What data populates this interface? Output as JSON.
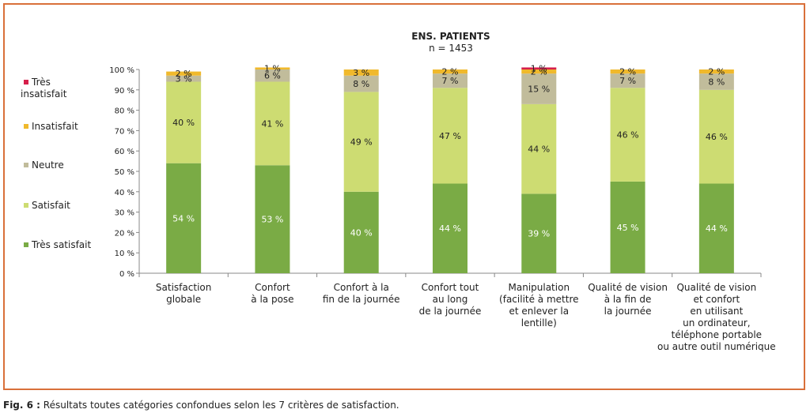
{
  "chart_data": {
    "type": "bar",
    "stacked": true,
    "title": "ENS. PATIENTS",
    "subtitle": "n = 1453",
    "ylim": [
      0,
      100
    ],
    "yticks": [
      "0 %",
      "10 %",
      "20 %",
      "30 %",
      "40 %",
      "50 %",
      "60 %",
      "70 %",
      "80 %",
      "90 %",
      "100 %"
    ],
    "categories": [
      [
        "Satisfaction",
        "globale"
      ],
      [
        "Confort",
        "à la pose"
      ],
      [
        "Confort à la",
        "fin de la journée"
      ],
      [
        "Confort tout",
        "au long",
        "de la journée"
      ],
      [
        "Manipulation",
        "(facilité à mettre",
        "et enlever la",
        "lentille)"
      ],
      [
        "Qualité de vision",
        "à la fin de",
        "la journée"
      ],
      [
        "Qualité de vision",
        "et confort",
        "en utilisant",
        "un ordinateur,",
        "téléphone portable",
        "ou autre outil numérique"
      ]
    ],
    "series": [
      {
        "name": "Très satisfait",
        "color": "#7aab45",
        "label_color": "#ffffff",
        "values": [
          54,
          53,
          40,
          44,
          39,
          45,
          44
        ]
      },
      {
        "name": "Satisfait",
        "color": "#cddc72",
        "label_color": "#222222",
        "values": [
          40,
          41,
          49,
          47,
          44,
          46,
          46
        ]
      },
      {
        "name": "Neutre",
        "color": "#c1bc9b",
        "label_color": "#222222",
        "values": [
          3,
          6,
          8,
          7,
          15,
          7,
          8
        ]
      },
      {
        "name": "Insatisfait",
        "color": "#f0b92c",
        "label_color": "#222222",
        "values": [
          2,
          1,
          3,
          2,
          2,
          2,
          2
        ]
      },
      {
        "name": "Très insatisfait",
        "color": "#d61f4b",
        "label_color": "#222222",
        "values": [
          0,
          0,
          0,
          0,
          1,
          0,
          0
        ]
      }
    ],
    "legend": [
      "Très insatisfait",
      "Insatisfait",
      "Neutre",
      "Satisfait",
      "Très satisfait"
    ],
    "legend_placement": "left",
    "grid": false
  },
  "caption": {
    "label": "Fig. 6 :",
    "text": " Résultats toutes catégories confondues selon les 7 critères de satisfaction."
  }
}
